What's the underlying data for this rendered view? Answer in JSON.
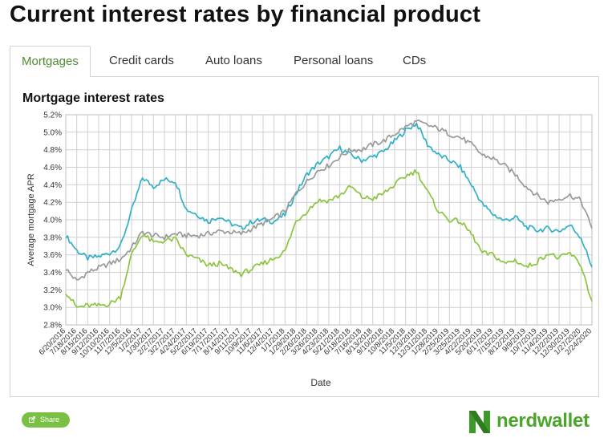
{
  "page": {
    "title": "Current interest rates by financial product"
  },
  "tabs": [
    {
      "label": "Mortgages",
      "active": true
    },
    {
      "label": "Credit cards",
      "active": false
    },
    {
      "label": "Auto loans",
      "active": false
    },
    {
      "label": "Personal loans",
      "active": false
    },
    {
      "label": "CDs",
      "active": false
    }
  ],
  "share": {
    "label": "Share",
    "icon": "share-icon"
  },
  "brand": {
    "name": "nerdwallet",
    "color": "#4aa529"
  },
  "colors": {
    "accent": "#7ac143",
    "active_tab": "#4f8b2e"
  },
  "chart_data": {
    "type": "line",
    "title": "Mortgage interest rates",
    "xlabel": "Date",
    "ylabel": "Average mortgage APR",
    "ylim": [
      2.8,
      5.2
    ],
    "yticks": [
      "2.8%",
      "3.0%",
      "3.2%",
      "3.4%",
      "3.6%",
      "3.8%",
      "4.0%",
      "4.2%",
      "4.4%",
      "4.6%",
      "4.8%",
      "5.0%",
      "5.2%"
    ],
    "grid": true,
    "legend": "none",
    "x": [
      "6/20/2016",
      "7/18/2016",
      "8/15/2016",
      "9/12/2016",
      "10/10/2016",
      "11/7/2016",
      "12/5/2016",
      "1/2/2017",
      "1/30/2017",
      "2/27/2017",
      "3/27/2017",
      "4/24/2017",
      "5/22/2017",
      "6/19/2017",
      "7/17/2017",
      "8/14/2017",
      "9/11/2017",
      "10/9/2017",
      "11/6/2017",
      "12/4/2017",
      "1/1/2018",
      "1/29/2018",
      "2/26/2018",
      "3/26/2018",
      "4/23/2018",
      "5/21/2018",
      "6/18/2018",
      "7/16/2018",
      "8/13/2018",
      "9/10/2018",
      "10/8/2018",
      "11/5/2018",
      "12/3/2018",
      "12/31/2018",
      "1/28/2019",
      "2/25/2019",
      "3/25/2019",
      "4/22/2019",
      "5/20/2019",
      "6/17/2019",
      "7/15/2019",
      "8/12/2019",
      "9/9/2019",
      "10/7/2019",
      "11/4/2019",
      "12/2/2019",
      "12/30/2019",
      "1/27/2020",
      "2/24/2020"
    ],
    "series": [
      {
        "color": "#2fb0c7",
        "values": [
          3.82,
          3.65,
          3.56,
          3.58,
          3.62,
          3.7,
          4.1,
          4.48,
          4.38,
          4.46,
          4.44,
          4.12,
          4.06,
          3.98,
          4.04,
          3.96,
          3.9,
          3.98,
          4.0,
          3.98,
          4.06,
          4.3,
          4.52,
          4.64,
          4.72,
          4.82,
          4.74,
          4.68,
          4.72,
          4.78,
          4.9,
          5.02,
          5.1,
          4.86,
          4.74,
          4.68,
          4.6,
          4.4,
          4.18,
          4.06,
          3.99,
          4.03,
          3.92,
          3.88,
          3.9,
          3.87,
          3.94,
          3.8,
          3.46
        ]
      },
      {
        "color": "#9a9a9a",
        "values": [
          3.44,
          3.3,
          3.4,
          3.45,
          3.5,
          3.55,
          3.68,
          3.86,
          3.82,
          3.8,
          3.84,
          3.82,
          3.82,
          3.84,
          3.87,
          3.86,
          3.84,
          3.9,
          3.96,
          4.02,
          4.1,
          4.3,
          4.44,
          4.56,
          4.62,
          4.72,
          4.8,
          4.8,
          4.86,
          4.9,
          4.98,
          5.06,
          5.12,
          5.08,
          5.04,
          4.98,
          4.94,
          4.86,
          4.74,
          4.7,
          4.62,
          4.52,
          4.38,
          4.28,
          4.2,
          4.24,
          4.28,
          4.22,
          3.9
        ]
      },
      {
        "color": "#8bc53f",
        "values": [
          3.18,
          3.0,
          3.02,
          3.02,
          3.04,
          3.12,
          3.6,
          3.84,
          3.74,
          3.76,
          3.78,
          3.6,
          3.55,
          3.48,
          3.5,
          3.44,
          3.38,
          3.44,
          3.5,
          3.56,
          3.64,
          3.98,
          4.1,
          4.22,
          4.22,
          4.28,
          4.38,
          4.26,
          4.24,
          4.3,
          4.4,
          4.5,
          4.56,
          4.32,
          4.1,
          4.0,
          3.98,
          3.84,
          3.62,
          3.6,
          3.5,
          3.54,
          3.46,
          3.52,
          3.62,
          3.56,
          3.62,
          3.48,
          3.07
        ]
      }
    ]
  }
}
